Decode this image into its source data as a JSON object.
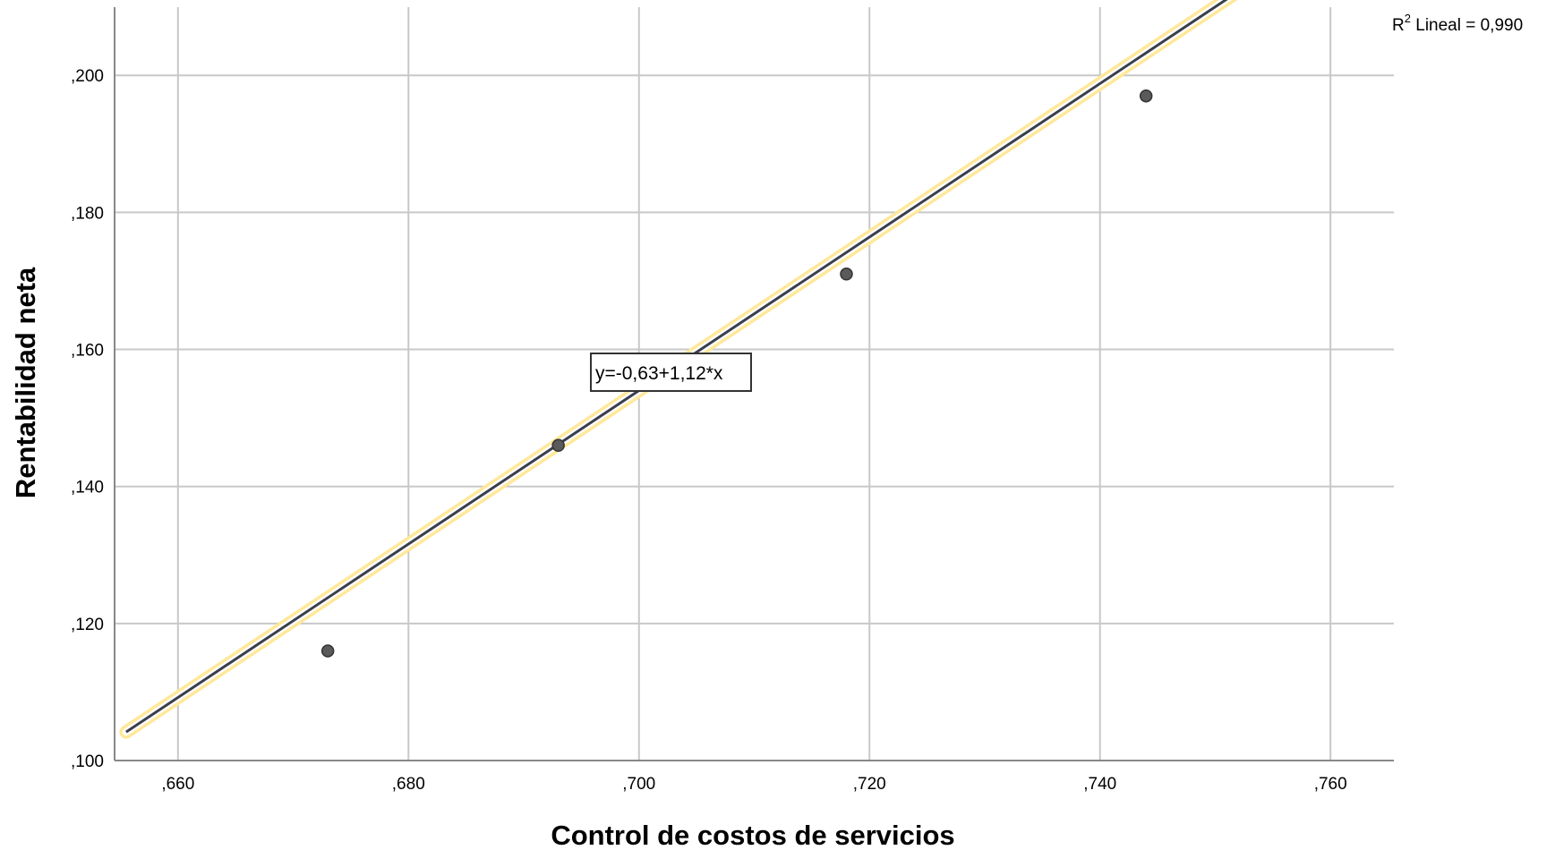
{
  "chart_data": {
    "type": "scatter",
    "xlabel": "Control de costos de servicios",
    "ylabel": "Rentabilidad neta",
    "xlim": [
      0.6545,
      0.7655
    ],
    "ylim": [
      0.1,
      0.211
    ],
    "x_ticks": [
      0.66,
      0.68,
      0.7,
      0.72,
      0.74,
      0.76
    ],
    "x_tick_labels": [
      ",660",
      ",680",
      ",700",
      ",720",
      ",740",
      ",760"
    ],
    "y_ticks": [
      0.1,
      0.12,
      0.14,
      0.16,
      0.18,
      0.2
    ],
    "y_tick_labels": [
      ",100",
      ",120",
      ",140",
      ",160",
      ",180",
      ",200"
    ],
    "grid": true,
    "points": [
      {
        "x": 0.673,
        "y": 0.116
      },
      {
        "x": 0.693,
        "y": 0.146
      },
      {
        "x": 0.718,
        "y": 0.171
      },
      {
        "x": 0.744,
        "y": 0.197
      }
    ],
    "fit_line": {
      "intercept": -0.63,
      "slope": 1.12,
      "x_range": [
        0.6555,
        0.755
      ],
      "label": "y=-0,63+1,12*x"
    },
    "r2_prefix": "R",
    "r2_sup": "2",
    "r2_text": " Lineal = 0,990",
    "colors": {
      "grid": "#c8c8c8",
      "axis": "#888888",
      "line": "#3b3f4c",
      "highlight": "#ffe89a",
      "point": "#5a5a5a"
    }
  }
}
